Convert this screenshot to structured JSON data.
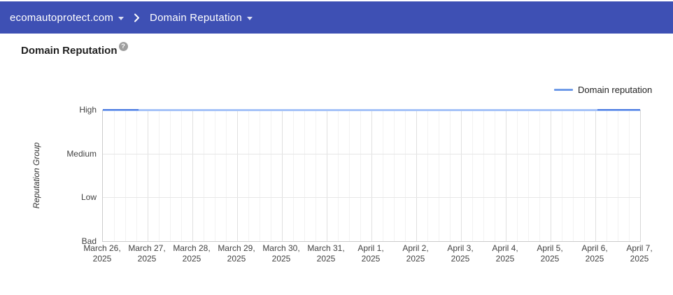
{
  "header": {
    "domain_selector": "ecomautoprotect.com",
    "section_selector": "Domain Reputation"
  },
  "page": {
    "title": "Domain Reputation",
    "help_glyph": "?"
  },
  "legend": {
    "label": "Domain reputation"
  },
  "chart_data": {
    "type": "line",
    "title": "Domain Reputation",
    "x": [
      "March 26, 2025",
      "March 27, 2025",
      "March 28, 2025",
      "March 29, 2025",
      "March 30, 2025",
      "March 31, 2025",
      "April 1, 2025",
      "April 2, 2025",
      "April 3, 2025",
      "April 4, 2025",
      "April 5, 2025",
      "April 6, 2025",
      "April 7, 2025"
    ],
    "series": [
      {
        "name": "Domain reputation",
        "values": [
          "High",
          "High",
          "High",
          "High",
          "High",
          "High",
          "High",
          "High",
          "High",
          "High",
          "High",
          "High",
          "High"
        ]
      }
    ],
    "y_axis": {
      "title": "Reputation Group",
      "categories_top_to_bottom": [
        "High",
        "Medium",
        "Low",
        "Bad"
      ]
    },
    "grid": true,
    "legend_position": "top-right"
  },
  "colors": {
    "header_bg": "#3E50B4",
    "header_text": "#FFFFFF",
    "title_text": "#212121",
    "help_icon": "#9E9E9E",
    "series_line": "#A6C3F8",
    "series_line_edges": "#4E7DE2",
    "legend_swatch": "#6F9BE8",
    "gridline_major": "#E0E0E0",
    "gridline_minor": "#F2F2F2",
    "gridline_horizontal": "#E6E6E6",
    "axis_line": "#CCCCCC"
  }
}
